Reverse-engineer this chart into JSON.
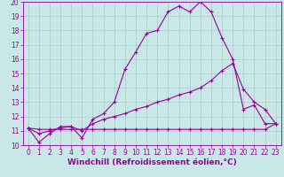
{
  "line1_x": [
    0,
    1,
    2,
    3,
    4,
    5,
    6,
    7,
    8,
    9,
    10,
    11,
    12,
    13,
    14,
    15,
    16,
    17,
    18,
    19,
    20,
    21,
    22,
    23
  ],
  "line1_y": [
    11.2,
    10.2,
    10.8,
    11.3,
    11.3,
    10.5,
    11.8,
    12.2,
    13.0,
    15.3,
    16.5,
    17.8,
    18.0,
    19.3,
    19.7,
    19.3,
    20.0,
    19.3,
    17.5,
    16.0,
    12.5,
    12.8,
    11.5,
    11.5
  ],
  "line2_x": [
    0,
    1,
    2,
    3,
    4,
    5,
    6,
    7,
    8,
    9,
    10,
    11,
    12,
    13,
    14,
    15,
    16,
    17,
    18,
    19,
    20,
    21,
    22,
    23
  ],
  "line2_y": [
    11.2,
    10.8,
    11.0,
    11.2,
    11.3,
    11.0,
    11.5,
    11.8,
    12.0,
    12.2,
    12.5,
    12.7,
    13.0,
    13.2,
    13.5,
    13.7,
    14.0,
    14.5,
    15.2,
    15.7,
    13.9,
    13.0,
    12.5,
    11.5
  ],
  "line3_x": [
    0,
    1,
    2,
    3,
    4,
    5,
    6,
    7,
    8,
    9,
    10,
    11,
    12,
    13,
    14,
    15,
    16,
    17,
    18,
    19,
    20,
    21,
    22,
    23
  ],
  "line3_y": [
    11.2,
    11.1,
    11.1,
    11.1,
    11.1,
    11.1,
    11.1,
    11.1,
    11.1,
    11.1,
    11.1,
    11.1,
    11.1,
    11.1,
    11.1,
    11.1,
    11.1,
    11.1,
    11.1,
    11.1,
    11.1,
    11.1,
    11.1,
    11.5
  ],
  "line_color": "#990099",
  "marker": "+",
  "markersize": 3,
  "linewidth": 0.8,
  "bg_color": "#c8e8e8",
  "grid_color": "#b0c8c8",
  "xlabel": "Windchill (Refroidissement éolien,°C)",
  "xlim": [
    -0.5,
    23.5
  ],
  "ylim": [
    10,
    20
  ],
  "xticks": [
    0,
    1,
    2,
    3,
    4,
    5,
    6,
    7,
    8,
    9,
    10,
    11,
    12,
    13,
    14,
    15,
    16,
    17,
    18,
    19,
    20,
    21,
    22,
    23
  ],
  "yticks": [
    10,
    11,
    12,
    13,
    14,
    15,
    16,
    17,
    18,
    19,
    20
  ],
  "xlabel_fontsize": 6.5,
  "tick_fontsize": 5.5
}
